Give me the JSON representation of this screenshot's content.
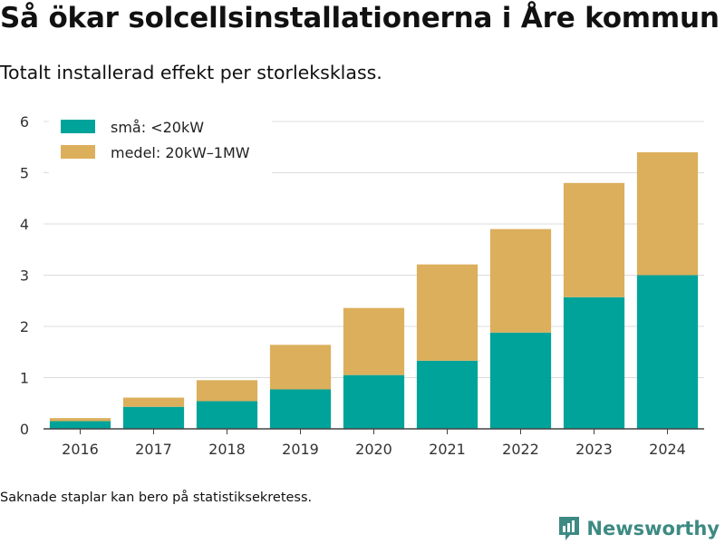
{
  "title": "Så ökar solcellsinstallationerna i Åre kommun",
  "subtitle": "Totalt installerad effekt per storleksklass.",
  "footnote": "Saknade staplar kan bero på statistiksekretess.",
  "brand": {
    "name": "Newsworthy",
    "color": "#3d8a83"
  },
  "chart_data": {
    "type": "bar",
    "stacked": true,
    "categories": [
      "2016",
      "2017",
      "2018",
      "2019",
      "2020",
      "2021",
      "2022",
      "2023",
      "2024"
    ],
    "series": [
      {
        "name": "små: <20kW",
        "color": "#00a39a",
        "values": [
          0.15,
          0.43,
          0.54,
          0.77,
          1.05,
          1.33,
          1.88,
          2.57,
          3.0
        ]
      },
      {
        "name": "medel: 20kW–1MW",
        "color": "#dbaf5c",
        "values": [
          0.06,
          0.18,
          0.41,
          0.87,
          1.31,
          1.88,
          2.02,
          2.23,
          2.4
        ]
      }
    ],
    "ylim": [
      0,
      6
    ],
    "yticks": [
      0,
      1,
      2,
      3,
      4,
      5,
      6
    ],
    "grid": true,
    "legend": "top-left"
  }
}
